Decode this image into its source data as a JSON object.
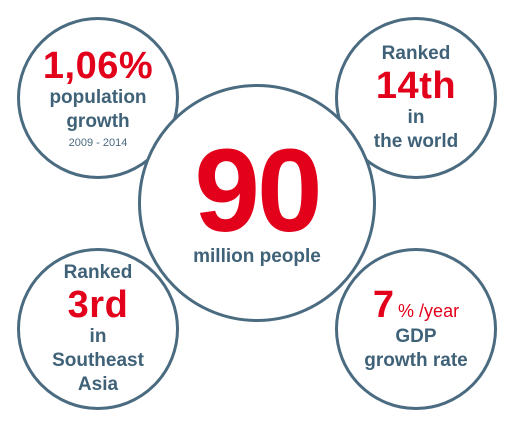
{
  "population_growth": {
    "value": "1,06%",
    "label_line1": "population",
    "label_line2": "growth",
    "period": "2009 - 2014"
  },
  "world_rank": {
    "prefix": "Ranked",
    "value": "14th",
    "line1": "in",
    "line2": "the world"
  },
  "population": {
    "value": "90",
    "label": "million people"
  },
  "sea_rank": {
    "prefix": "Ranked",
    "value": "3rd",
    "line1": "in",
    "line2": "Southeast",
    "line3": "Asia"
  },
  "gdp": {
    "value": "7",
    "unit": "% /year",
    "line1": "GDP",
    "line2": "growth rate"
  },
  "colors": {
    "accent_red": "#e3001b",
    "text_blue": "#3f6278",
    "border_blue": "#4a6b80"
  }
}
